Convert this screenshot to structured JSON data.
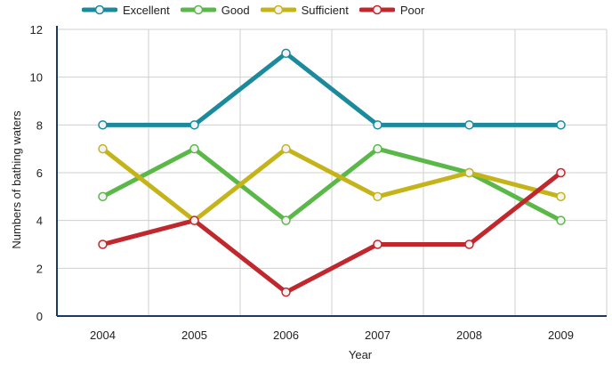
{
  "chart_data": {
    "type": "line",
    "xlabel": "Year",
    "ylabel": "Numbers of bathing waters",
    "categories": [
      "2004",
      "2005",
      "2006",
      "2007",
      "2008",
      "2009"
    ],
    "ylim": [
      0,
      12
    ],
    "yticks": [
      "0",
      "2",
      "4",
      "6",
      "8",
      "10",
      "12"
    ],
    "grid": true,
    "legend_position": "top-left",
    "series": [
      {
        "name": "Excellent",
        "color": "#1b8a9c",
        "values": [
          8,
          8,
          11,
          8,
          8,
          8
        ]
      },
      {
        "name": "Good",
        "color": "#5ab848",
        "values": [
          5,
          7,
          4,
          7,
          6,
          4
        ]
      },
      {
        "name": "Sufficient",
        "color": "#c4b419",
        "values": [
          7,
          4,
          7,
          5,
          6,
          5
        ]
      },
      {
        "name": "Poor",
        "color": "#c0282e",
        "values": [
          3,
          4,
          1,
          3,
          3,
          6
        ]
      }
    ]
  }
}
